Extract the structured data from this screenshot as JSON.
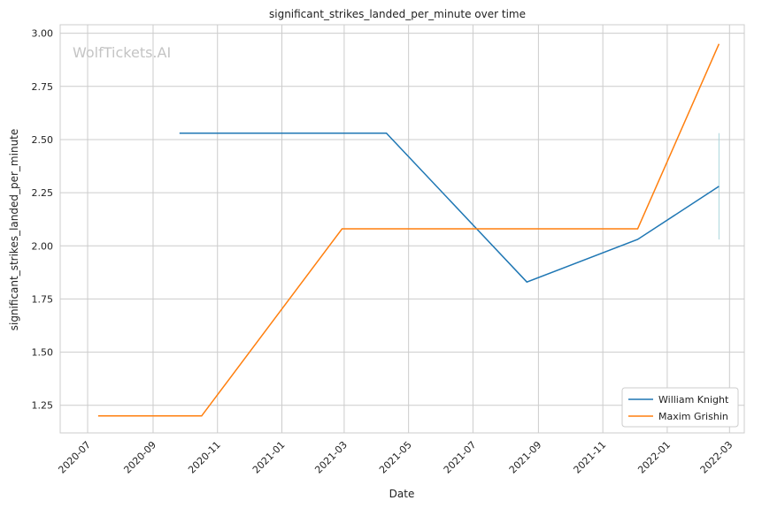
{
  "chart_data": {
    "type": "line",
    "title": "significant_strikes_landed_per_minute over time",
    "xlabel": "Date",
    "ylabel": "significant_strikes_landed_per_minute",
    "watermark": "WolfTickets.AI",
    "x_ticks": [
      "2020-07",
      "2020-09",
      "2020-11",
      "2021-01",
      "2021-03",
      "2021-05",
      "2021-07",
      "2021-09",
      "2021-11",
      "2022-01",
      "2022-03"
    ],
    "y_ticks": [
      "1.25",
      "1.50",
      "1.75",
      "2.00",
      "2.25",
      "2.50",
      "2.75",
      "3.00"
    ],
    "xlim": [
      "2020-06-05",
      "2022-03-15"
    ],
    "ylim": [
      1.12,
      3.04
    ],
    "grid": true,
    "legend_position": "lower-right",
    "series": [
      {
        "name": "William Knight",
        "color": "#1f77b4",
        "points": [
          {
            "x": "2020-09-26",
            "y": 2.53
          },
          {
            "x": "2021-04-10",
            "y": 2.53
          },
          {
            "x": "2021-08-21",
            "y": 1.83
          },
          {
            "x": "2021-12-04",
            "y": 2.03
          },
          {
            "x": "2022-02-19",
            "y": 2.28
          }
        ]
      },
      {
        "name": "Maxim Grishin",
        "color": "#ff7f0e",
        "points": [
          {
            "x": "2020-07-11",
            "y": 1.2
          },
          {
            "x": "2020-10-17",
            "y": 1.2
          },
          {
            "x": "2021-02-27",
            "y": 2.08
          },
          {
            "x": "2021-12-04",
            "y": 2.08
          },
          {
            "x": "2022-02-19",
            "y": 2.95
          }
        ]
      }
    ],
    "error_band": {
      "x": "2022-02-19",
      "y_low": 2.03,
      "y_high": 2.53,
      "color": "#aad4dc"
    }
  }
}
